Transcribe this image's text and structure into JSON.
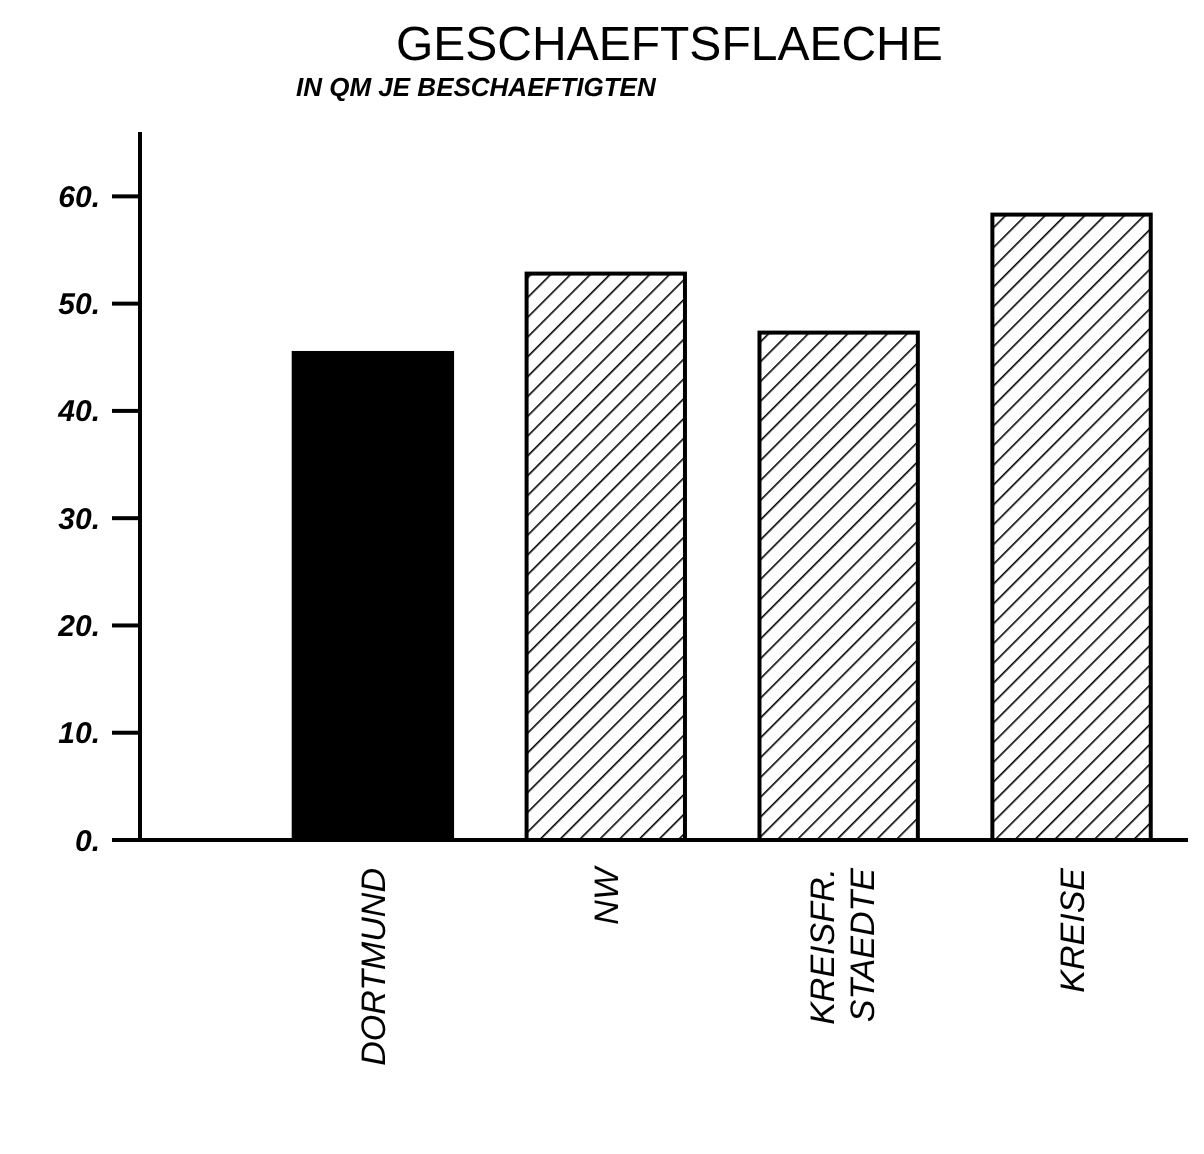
{
  "chart_data": {
    "type": "bar",
    "title": "GESCHAEFTSFLAECHE",
    "subtitle": "IN QM JE BESCHAEFTIGTEN",
    "categories": [
      "DORTMUND",
      "NW",
      "KREISFR.\nSTAEDTE",
      "KREISE"
    ],
    "values": [
      45.4,
      52.8,
      47.3,
      58.3
    ],
    "colors": [
      "#000000",
      "#ffffff",
      "#ffffff",
      "#ffffff"
    ],
    "ylim": [
      0,
      66
    ],
    "yticks": [
      {
        "value": 0,
        "label": "0."
      },
      {
        "value": 10,
        "label": "10."
      },
      {
        "value": 20,
        "label": "20."
      },
      {
        "value": 30,
        "label": "30."
      },
      {
        "value": 40,
        "label": "40."
      },
      {
        "value": 50,
        "label": "50."
      },
      {
        "value": 60,
        "label": "60."
      }
    ],
    "grid": false
  }
}
